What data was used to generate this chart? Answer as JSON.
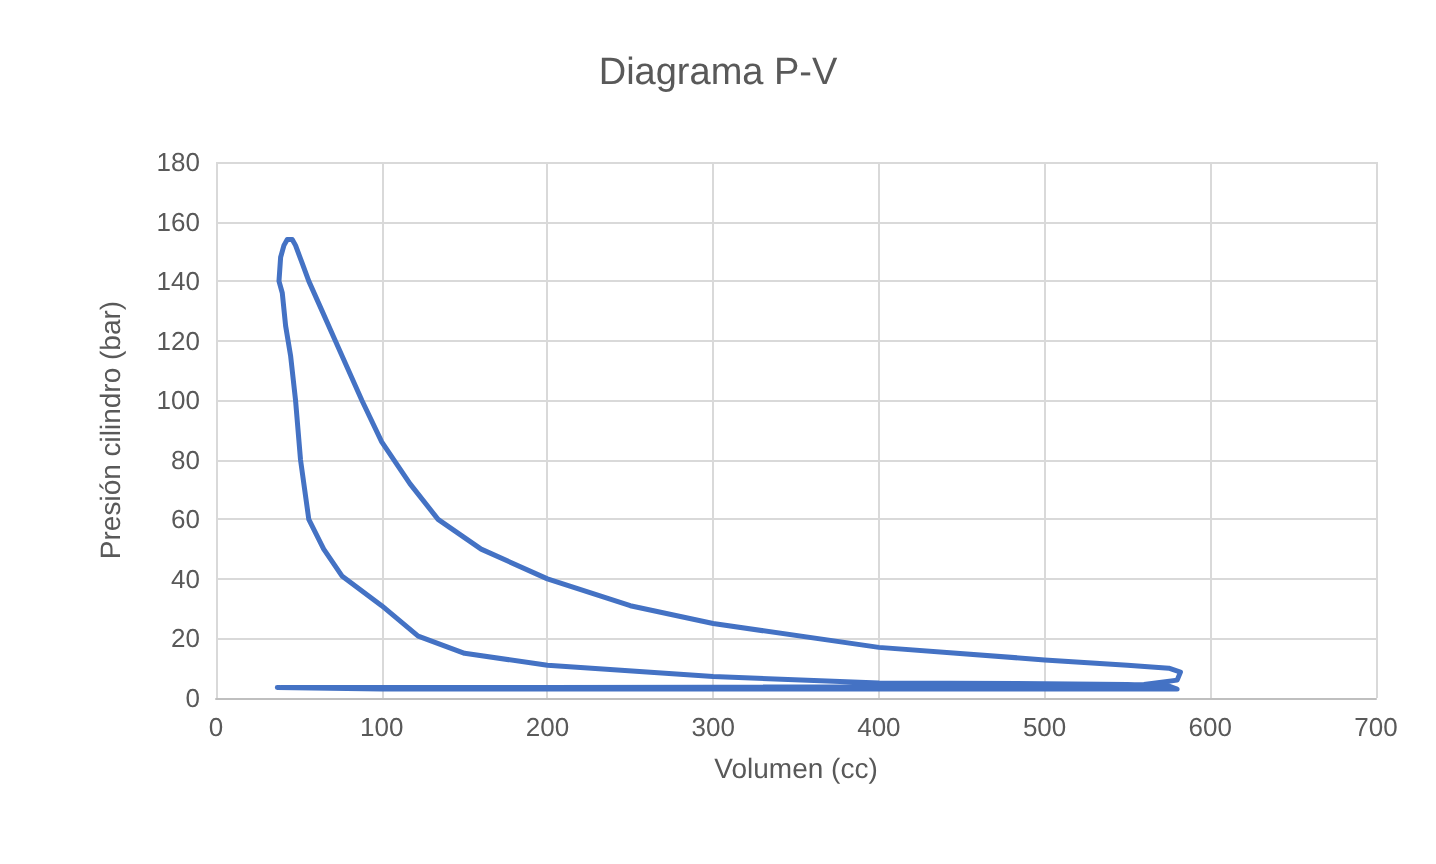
{
  "chart_data": {
    "type": "line",
    "title": "Diagrama P-V",
    "xlabel": "Volumen (cc)",
    "ylabel": "Presión cilindro (bar)",
    "series": [
      {
        "color": "#4472c4",
        "x": [
          37,
          100,
          200,
          300,
          400,
          500,
          580,
          575,
          550,
          500,
          400,
          300,
          200,
          150,
          122,
          100,
          76,
          65,
          56,
          51,
          48,
          45,
          42,
          40,
          38,
          39,
          41,
          43,
          46,
          48,
          52,
          56,
          64,
          72,
          80,
          88,
          100,
          117,
          134,
          160,
          200,
          250,
          300,
          400,
          500,
          550,
          575,
          582,
          580,
          560,
          500,
          400,
          300,
          200,
          100,
          40
        ],
        "values": [
          3.5,
          3,
          3,
          3,
          3,
          3,
          3,
          4,
          4.5,
          4.8,
          5,
          7.2,
          11,
          15,
          20.8,
          31,
          41,
          50,
          60,
          80,
          100,
          115,
          125,
          136,
          140,
          148,
          152,
          154,
          154,
          152,
          146,
          140,
          130,
          120,
          110,
          100,
          86,
          72,
          60,
          50,
          40,
          31,
          25,
          17,
          12.8,
          11,
          10,
          8.7,
          6,
          4.5,
          4,
          3.8,
          3.6,
          3.5,
          3.5,
          3.5
        ]
      }
    ],
    "xlim": [
      0,
      700
    ],
    "xticks": [
      0,
      100,
      200,
      300,
      400,
      500,
      600,
      700
    ],
    "ylim": [
      0,
      180
    ],
    "yticks": [
      0,
      20,
      40,
      60,
      80,
      100,
      120,
      140,
      160,
      180
    ],
    "grid": true,
    "marker": "none",
    "line_style": "solid"
  }
}
